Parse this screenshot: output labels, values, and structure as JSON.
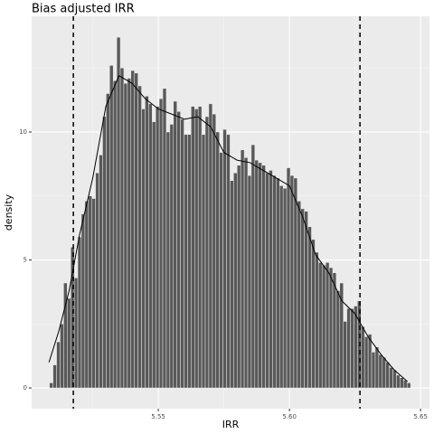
{
  "chart_data": {
    "type": "histogram",
    "title": "Bias adjusted IRR",
    "xlabel": "IRR",
    "ylabel": "density",
    "bins": [
      5.5085,
      5.50985,
      5.5112,
      5.51255,
      5.5139,
      5.51525,
      5.5166,
      5.51795,
      5.5193,
      5.52065,
      5.522,
      5.52335,
      5.5247,
      5.52605,
      5.5274,
      5.52875,
      5.5301,
      5.53145,
      5.5328,
      5.53415,
      5.5355,
      5.53685,
      5.5382,
      5.53955,
      5.5409,
      5.54225,
      5.5436,
      5.54495,
      5.5463,
      5.54765,
      5.549,
      5.55035,
      5.5517,
      5.55305,
      5.5544,
      5.55575,
      5.5571,
      5.55845,
      5.5598,
      5.56115,
      5.5625,
      5.56385,
      5.5652,
      5.56655,
      5.5679,
      5.56925,
      5.5706,
      5.57195,
      5.5733,
      5.57465,
      5.576,
      5.57735,
      5.5787,
      5.58005,
      5.5814,
      5.58275,
      5.5841,
      5.58545,
      5.5868,
      5.58815,
      5.5895,
      5.59085,
      5.5922,
      5.59355,
      5.5949,
      5.59625,
      5.5976,
      5.59895,
      5.6003,
      5.60165,
      5.603,
      5.60435,
      5.6057,
      5.60705,
      5.6084,
      5.60975,
      5.6111,
      5.61245,
      5.6138,
      5.61515,
      5.6165,
      5.61785,
      5.6192,
      5.62055,
      5.6219,
      5.62325,
      5.6246,
      5.62595,
      5.6273,
      5.62865,
      5.63,
      5.63135,
      5.6327,
      5.63405,
      5.6354,
      5.63675,
      5.6381,
      5.63945,
      5.6408,
      5.64215,
      5.6435,
      5.64485,
      5.6462
    ],
    "values": [
      0.2,
      0.9,
      1.8,
      2.5,
      4.1,
      3.5,
      5.5,
      4.3,
      5.9,
      6.8,
      7.3,
      7.5,
      7.4,
      8.4,
      9.1,
      10.6,
      11.5,
      12.6,
      12.0,
      13.7,
      12.5,
      11.9,
      12.1,
      12.4,
      12.3,
      11.8,
      10.9,
      11.4,
      11.1,
      10.4,
      11.0,
      11.3,
      11.7,
      10.0,
      10.3,
      11.2,
      10.8,
      10.5,
      9.9,
      9.9,
      11.0,
      10.9,
      11.0,
      9.9,
      10.6,
      11.1,
      10.7,
      10.0,
      9.2,
      10.1,
      9.9,
      8.1,
      8.4,
      8.7,
      9.3,
      9.0,
      8.3,
      9.5,
      8.9,
      8.8,
      8.7,
      8.4,
      8.5,
      8.3,
      8.2,
      7.9,
      7.8,
      8.6,
      8.3,
      8.2,
      7.3,
      7.0,
      6.9,
      6.3,
      5.8,
      5.3,
      4.9,
      4.8,
      4.9,
      4.7,
      4.5,
      3.8,
      4.1,
      2.6,
      3.1,
      3.1,
      3.2,
      3.4,
      2.4,
      2.0,
      2.1,
      1.4,
      1.6,
      1.3,
      1.2,
      1.0,
      0.8,
      0.7,
      0.5,
      0.4,
      0.3,
      0.2
    ],
    "color": "#595959",
    "density": {
      "color": "#000000",
      "x": [
        5.5083,
        5.512,
        5.516,
        5.52,
        5.525,
        5.53,
        5.535,
        5.54,
        5.545,
        5.55,
        5.555,
        5.56,
        5.565,
        5.57,
        5.575,
        5.58,
        5.585,
        5.59,
        5.595,
        5.6,
        5.605,
        5.61,
        5.615,
        5.62,
        5.625,
        5.63,
        5.635,
        5.64,
        5.645
      ],
      "y": [
        1.0,
        2.2,
        3.8,
        6.0,
        8.2,
        11.0,
        12.2,
        11.9,
        11.3,
        10.9,
        10.7,
        10.5,
        10.6,
        10.2,
        9.2,
        8.9,
        8.8,
        8.5,
        8.2,
        7.9,
        6.7,
        5.2,
        4.5,
        3.4,
        2.9,
        2.0,
        1.3,
        0.7,
        0.25
      ]
    },
    "vlines": [
      5.5176,
      5.6269
    ],
    "xlim": [
      5.5017,
      5.6534
    ],
    "ylim": [
      -0.81,
      14.52
    ],
    "xticks": [
      5.55,
      {
        "value": 5.6,
        "label": "5.60"
      },
      5.65
    ],
    "yticks": [
      0,
      5,
      10
    ],
    "xminorticks": [
      5.525,
      5.575,
      5.625
    ],
    "yminorticks": [
      2.5,
      7.5,
      12.5
    ],
    "grid": true
  }
}
